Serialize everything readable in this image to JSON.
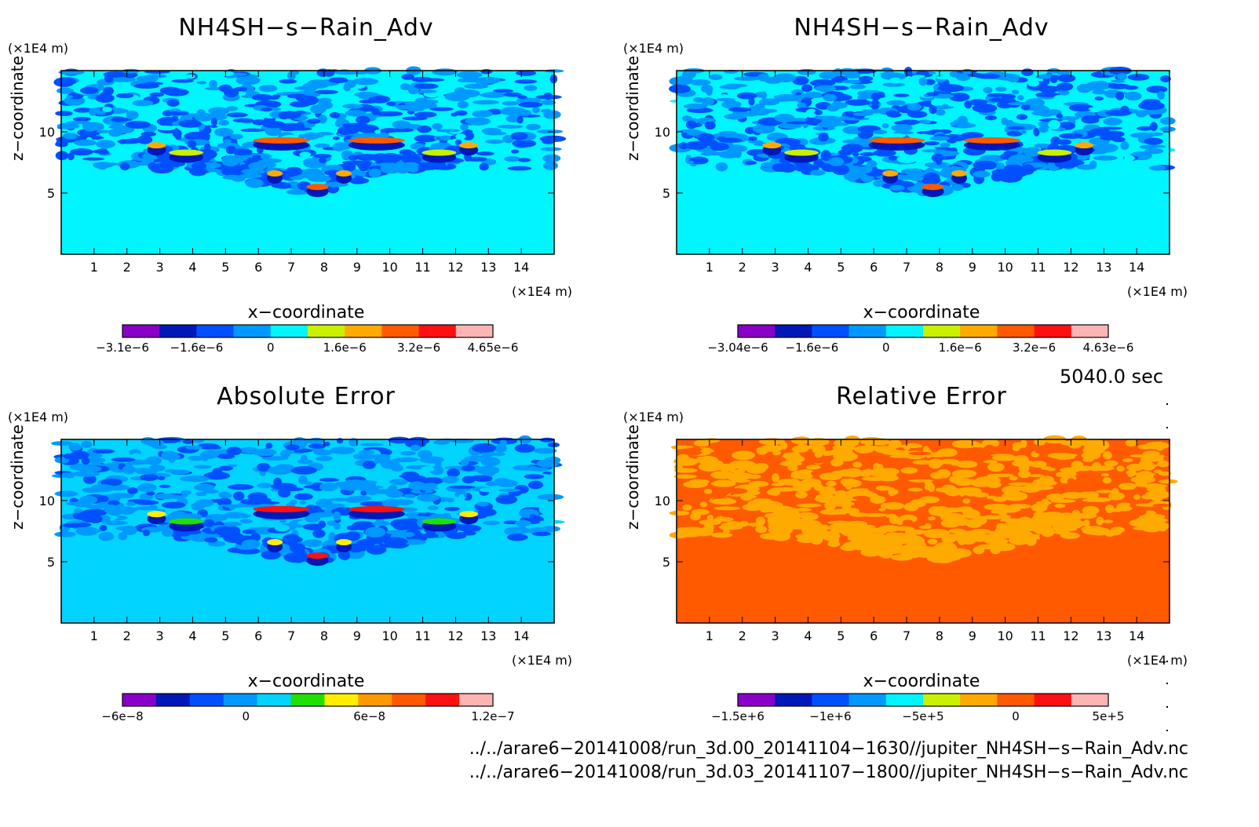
{
  "chart_data": [
    {
      "type": "heatmap",
      "title": "NH4SH−s−Rain_Adv",
      "xlabel": "x−coordinate",
      "ylabel": "z−coordinate",
      "x_unit": "(×1E4 m)",
      "z_unit": "(×1E4 m)",
      "x_ticks": [
        "1",
        "2",
        "3",
        "4",
        "5",
        "6",
        "7",
        "8",
        "9",
        "10",
        "11",
        "12",
        "13",
        "14"
      ],
      "z_ticks": [
        "5",
        "10"
      ],
      "xlim": [
        0,
        15
      ],
      "zlim": [
        0,
        15
      ],
      "colorbar": {
        "colors": [
          "#8a00c8",
          "#0018b8",
          "#0050ff",
          "#0099ff",
          "#00f5ff",
          "#c8f000",
          "#ffaa00",
          "#ff5a00",
          "#ff1010",
          "#ffb4b4"
        ],
        "tick_labels": [
          "−3.1e−6",
          "−1.6e−6",
          "0",
          "1.6e−6",
          "3.2e−6",
          "4.65e−6"
        ]
      }
    },
    {
      "type": "heatmap",
      "title": "NH4SH−s−Rain_Adv",
      "xlabel": "x−coordinate",
      "ylabel": "z−coordinate",
      "x_unit": "(×1E4 m)",
      "z_unit": "(×1E4 m)",
      "x_ticks": [
        "1",
        "2",
        "3",
        "4",
        "5",
        "6",
        "7",
        "8",
        "9",
        "10",
        "11",
        "12",
        "13",
        "14"
      ],
      "z_ticks": [
        "5",
        "10"
      ],
      "xlim": [
        0,
        15
      ],
      "zlim": [
        0,
        15
      ],
      "colorbar": {
        "colors": [
          "#8a00c8",
          "#0018b8",
          "#0050ff",
          "#0099ff",
          "#00f5ff",
          "#c8f000",
          "#ffaa00",
          "#ff5a00",
          "#ff1010",
          "#ffb4b4"
        ],
        "tick_labels": [
          "−3.04e−6",
          "−1.6e−6",
          "0",
          "1.6e−6",
          "3.2e−6",
          "4.63e−6"
        ]
      }
    },
    {
      "type": "heatmap",
      "title": "Absolute Error",
      "xlabel": "x−coordinate",
      "ylabel": "z−coordinate",
      "x_unit": "(×1E4 m)",
      "z_unit": "(×1E4 m)",
      "x_ticks": [
        "1",
        "2",
        "3",
        "4",
        "5",
        "6",
        "7",
        "8",
        "9",
        "10",
        "11",
        "12",
        "13",
        "14"
      ],
      "z_ticks": [
        "5",
        "10"
      ],
      "xlim": [
        0,
        15
      ],
      "zlim": [
        0,
        15
      ],
      "colorbar": {
        "colors": [
          "#8a00c8",
          "#0018b8",
          "#0050ff",
          "#0099ff",
          "#00d4ff",
          "#20e000",
          "#ffee00",
          "#ff9900",
          "#ff5a00",
          "#ff1010",
          "#ffb4b4"
        ],
        "tick_labels": [
          "−6e−8",
          "0",
          "6e−8",
          "1.2e−7"
        ]
      }
    },
    {
      "type": "heatmap",
      "title": "Relative Error",
      "xlabel": "x−coordinate",
      "ylabel": "z−coordinate",
      "x_unit": "(×1E4 m)",
      "z_unit": "(×1E4 m)",
      "x_ticks": [
        "1",
        "2",
        "3",
        "4",
        "5",
        "6",
        "7",
        "8",
        "9",
        "10",
        "11",
        "12",
        "13",
        "14"
      ],
      "z_ticks": [
        "5",
        "10"
      ],
      "xlim": [
        0,
        15
      ],
      "zlim": [
        0,
        15
      ],
      "colorbar": {
        "colors": [
          "#8a00c8",
          "#0018b8",
          "#0050ff",
          "#0099ff",
          "#00f5ff",
          "#c8f000",
          "#ffaa00",
          "#ff5a00",
          "#ff1010",
          "#ffb4b4"
        ],
        "tick_labels": [
          "−1.5e+6",
          "−1e+6",
          "−5e+5",
          "0",
          "5e+5"
        ]
      }
    }
  ],
  "time_label": "5040.0 sec",
  "files": [
    "../../arare6−20141008/run_3d.00_20141104−1630//jupiter_NH4SH−s−Rain_Adv.nc",
    "../../arare6−20141008/run_3d.03_20141107−1800//jupiter_NH4SH−s−Rain_Adv.nc"
  ]
}
